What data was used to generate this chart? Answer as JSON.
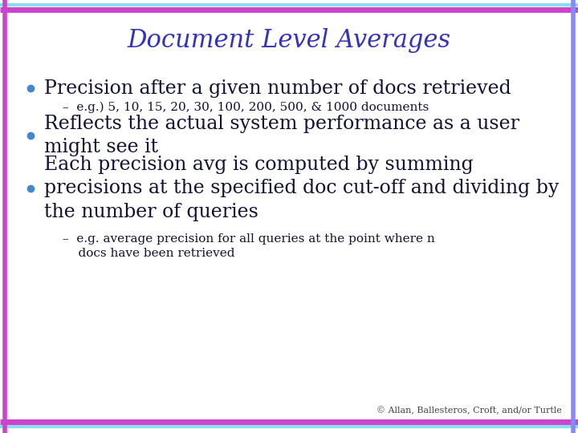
{
  "title": "Document Level Averages",
  "title_color": "#3333BB",
  "title_fontsize": 22,
  "background_color": "#FFFFFF",
  "border_left_color": "#CC44CC",
  "border_right_color": "#8888FF",
  "border_top_color1": "#88DDEE",
  "border_top_color2": "#CC44CC",
  "border_bottom_color1": "#88DDEE",
  "border_bottom_color2": "#CC44CC",
  "bullet_color": "#4488CC",
  "bullet_text_color": "#111133",
  "sub_text_color": "#111133",
  "copyright_color": "#444444",
  "bullets": [
    {
      "text": "Precision after a given number of docs retrieved",
      "fontsize": 17,
      "sub_bullets": [
        "–  e.g.) 5, 10, 15, 20, 30, 100, 200, 500, & 1000 documents"
      ],
      "sub_fontsize": 11
    },
    {
      "text": "Reflects the actual system performance as a user\nmight see it",
      "fontsize": 17,
      "sub_bullets": [],
      "sub_fontsize": 11
    },
    {
      "text": "Each precision avg is computed by summing\nprecisions at the specified doc cut-off and dividing by\nthe number of queries",
      "fontsize": 17,
      "sub_bullets": [
        "–  e.g. average precision for all queries at the point where n\n    docs have been retrieved"
      ],
      "sub_fontsize": 11
    }
  ],
  "copyright": "© Allan, Ballesteros, Croft, and/or Turtle",
  "copyright_fontsize": 8
}
